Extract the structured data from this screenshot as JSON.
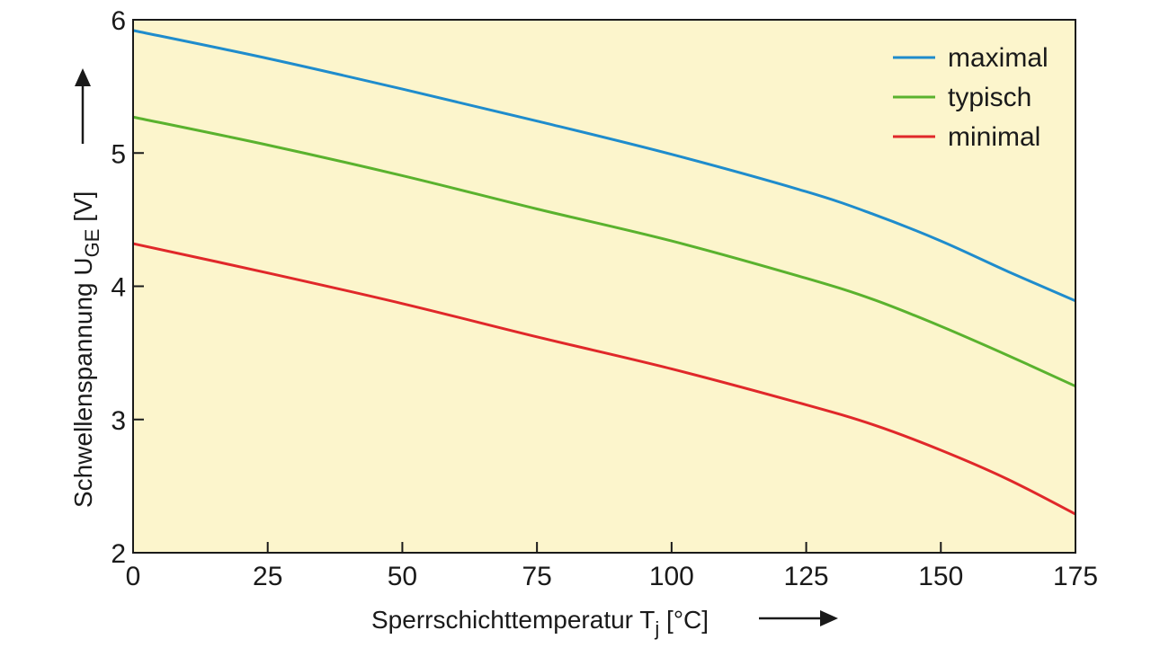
{
  "chart_data": {
    "type": "line",
    "xlabel": {
      "main": "Sperrschichttemperatur T",
      "sub": "j",
      "unit": " [°C]"
    },
    "ylabel": {
      "main": "Schwellenspannung U",
      "sub": "GE",
      "unit": " [V]"
    },
    "xlim": [
      0,
      175
    ],
    "ylim": [
      2,
      6
    ],
    "xticks": [
      0,
      25,
      50,
      75,
      100,
      125,
      150,
      175
    ],
    "yticks": [
      2,
      3,
      4,
      5,
      6
    ],
    "grid": false,
    "legend_position": "top-right",
    "background": "#fcf5cc",
    "series": [
      {
        "name": "maximal",
        "color": "#1f8ccc",
        "x": [
          0,
          25,
          50,
          75,
          100,
          125,
          137.5,
          150,
          162.5,
          175
        ],
        "y": [
          5.92,
          5.71,
          5.48,
          5.24,
          4.99,
          4.71,
          4.54,
          4.34,
          4.11,
          3.89
        ]
      },
      {
        "name": "typisch",
        "color": "#5ab22e",
        "x": [
          0,
          25,
          50,
          75,
          100,
          125,
          137.5,
          150,
          162.5,
          175
        ],
        "y": [
          5.27,
          5.06,
          4.83,
          4.58,
          4.34,
          4.06,
          3.9,
          3.7,
          3.48,
          3.25
        ]
      },
      {
        "name": "minimal",
        "color": "#e0282a",
        "x": [
          0,
          25,
          50,
          75,
          100,
          125,
          137.5,
          150,
          162.5,
          175
        ],
        "y": [
          4.32,
          4.1,
          3.87,
          3.62,
          3.38,
          3.11,
          2.96,
          2.77,
          2.55,
          2.29
        ]
      }
    ]
  }
}
